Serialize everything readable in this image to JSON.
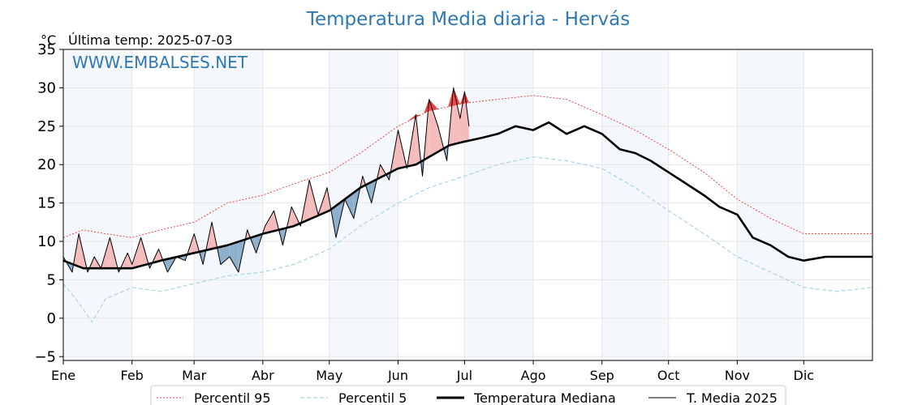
{
  "chart_data": {
    "type": "line",
    "title": "Temperatura Media diaria - Hervás",
    "unit": "°C",
    "subtitle": "Última temp: 2025-07-03",
    "watermark": "WWW.EMBALSES.NET",
    "x_tick_labels": [
      "Ene",
      "Feb",
      "Mar",
      "Abr",
      "May",
      "Jun",
      "Jul",
      "Ago",
      "Sep",
      "Oct",
      "Nov",
      "Dic"
    ],
    "month_start_days": [
      1,
      32,
      60,
      91,
      121,
      152,
      182,
      213,
      244,
      274,
      305,
      335
    ],
    "x_range_days": [
      1,
      366
    ],
    "ylim": [
      -5.5,
      35
    ],
    "y_ticks": [
      -5,
      0,
      5,
      10,
      15,
      20,
      25,
      30,
      35
    ],
    "grid": true,
    "legend_position": "bottom-center",
    "series": [
      {
        "name": "Percentil 95",
        "style": "dotted",
        "color": "#ee3333",
        "x": [
          1,
          10,
          20,
          32,
          45,
          60,
          75,
          91,
          105,
          121,
          135,
          152,
          166,
          182,
          197,
          213,
          228,
          244,
          259,
          274,
          290,
          305,
          320,
          335,
          350,
          366
        ],
        "y": [
          10.5,
          11.5,
          11.0,
          10.5,
          11.5,
          12.5,
          15.0,
          16.0,
          17.5,
          19.0,
          21.5,
          25.0,
          27.0,
          28.0,
          28.5,
          29.0,
          28.5,
          26.5,
          24.5,
          22.0,
          19.0,
          15.5,
          13.0,
          11.0,
          11.0,
          11.0
        ]
      },
      {
        "name": "Percentil 5",
        "style": "dashed",
        "color": "#a8d5e5",
        "x": [
          1,
          8,
          14,
          20,
          32,
          45,
          60,
          75,
          91,
          105,
          121,
          135,
          152,
          166,
          182,
          197,
          213,
          228,
          244,
          259,
          274,
          290,
          305,
          320,
          335,
          350,
          366
        ],
        "y": [
          4.5,
          2.0,
          -0.5,
          2.5,
          4.0,
          3.5,
          4.5,
          5.5,
          6.0,
          7.0,
          9.0,
          12.0,
          15.0,
          17.0,
          18.5,
          20.0,
          21.0,
          20.5,
          19.5,
          17.0,
          14.0,
          11.0,
          8.0,
          6.0,
          4.0,
          3.5,
          4.0
        ]
      },
      {
        "name": "Temperatura Mediana",
        "style": "solid-thick",
        "color": "#000000",
        "x": [
          1,
          10,
          20,
          32,
          45,
          60,
          75,
          91,
          105,
          121,
          135,
          152,
          160,
          166,
          175,
          182,
          190,
          197,
          205,
          213,
          220,
          228,
          236,
          244,
          252,
          259,
          266,
          274,
          282,
          290,
          297,
          305,
          312,
          320,
          328,
          335,
          345,
          356,
          366
        ],
        "y": [
          7.5,
          6.5,
          6.5,
          6.5,
          7.5,
          8.5,
          9.5,
          11.0,
          12.0,
          14.0,
          17.0,
          19.5,
          20.0,
          21.0,
          22.5,
          23.0,
          23.5,
          24.0,
          25.0,
          24.5,
          25.5,
          24.0,
          25.0,
          24.0,
          22.0,
          21.5,
          20.5,
          19.0,
          17.5,
          16.0,
          14.5,
          13.5,
          10.5,
          9.5,
          8.0,
          7.5,
          8.0,
          8.0,
          8.0
        ]
      },
      {
        "name": "T. Media 2025",
        "style": "solid-thin",
        "color": "#000000",
        "x": [
          1,
          5,
          8,
          12,
          15,
          18,
          22,
          26,
          30,
          32,
          36,
          40,
          44,
          48,
          52,
          56,
          60,
          64,
          68,
          72,
          76,
          80,
          84,
          88,
          92,
          96,
          100,
          104,
          108,
          112,
          116,
          120,
          124,
          128,
          132,
          136,
          140,
          144,
          148,
          152,
          156,
          160,
          163,
          166,
          170,
          174,
          177,
          180,
          182,
          184
        ],
        "y": [
          8.0,
          6.0,
          11.0,
          6.0,
          8.0,
          6.5,
          10.5,
          6.0,
          8.5,
          7.0,
          10.5,
          6.5,
          9.0,
          6.0,
          8.0,
          7.5,
          11.0,
          7.0,
          12.5,
          7.0,
          8.0,
          6.0,
          11.5,
          8.5,
          12.0,
          14.0,
          9.5,
          14.5,
          12.0,
          18.0,
          13.5,
          17.0,
          10.5,
          15.5,
          13.0,
          18.5,
          15.0,
          20.0,
          18.0,
          24.5,
          19.5,
          26.5,
          18.5,
          28.5,
          25.0,
          20.5,
          30.0,
          26.0,
          29.5,
          25.0
        ]
      }
    ]
  }
}
